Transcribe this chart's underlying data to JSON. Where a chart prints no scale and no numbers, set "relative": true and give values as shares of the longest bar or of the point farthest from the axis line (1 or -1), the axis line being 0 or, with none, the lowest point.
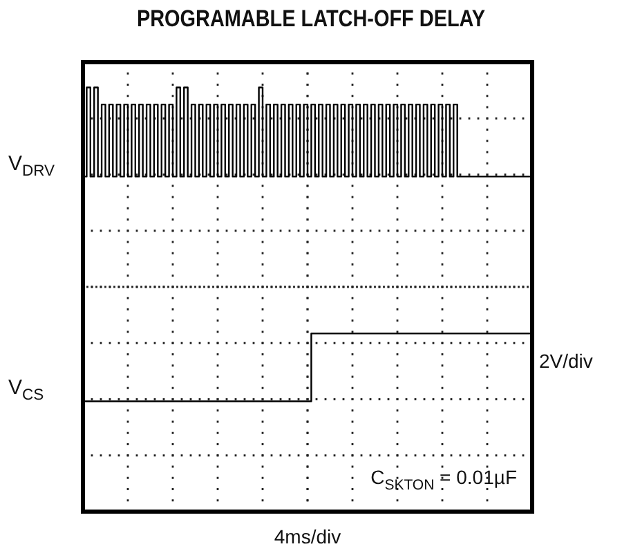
{
  "chart_data": {
    "type": "step",
    "title": "PROGRAMABLE LATCH-OFF DELAY",
    "xlabel": "4ms/div",
    "y2label": "2V/div",
    "relative": true,
    "grid": true,
    "legend": "left",
    "marker": "none",
    "line_style": "solid",
    "annotations": [
      "C$_{SKTON}$ = 0.01µF"
    ],
    "categories": [
      null,
      null,
      null,
      null,
      null,
      null,
      null,
      null,
      null,
      null,
      null,
      null,
      null,
      null,
      null,
      null,
      null,
      null,
      null,
      null,
      null,
      null,
      null,
      null,
      null,
      null,
      null,
      null,
      null,
      null,
      null,
      null,
      null,
      null,
      null,
      null,
      null,
      null,
      null,
      null,
      null,
      null,
      null,
      null,
      null,
      null,
      null,
      null,
      null,
      null,
      null,
      null,
      null,
      null,
      null,
      null,
      null,
      null,
      null,
      null,
      null,
      null,
      null,
      null,
      null,
      null,
      null,
      null,
      null,
      null,
      null,
      null,
      null,
      null,
      null,
      null,
      null,
      null,
      null,
      null,
      null,
      null,
      null,
      null,
      null,
      null,
      null,
      null,
      null,
      null,
      null,
      null,
      null,
      null,
      null,
      null,
      null,
      null,
      null,
      null,
      null,
      null,
      null,
      null,
      null,
      null,
      null,
      null,
      null,
      null,
      null,
      null,
      null,
      null,
      null,
      null,
      null,
      null,
      null,
      null,
      null
    ],
    "series": [
      {
        "name": "V$_{DRV}$",
        "color": "#000000",
        "values": [
          0.79,
          1.0,
          0.79,
          1.0,
          0.79,
          0.96,
          0.79,
          0.96,
          0.79,
          0.96,
          0.79,
          0.96,
          0.79,
          0.96,
          0.79,
          0.96,
          0.79,
          0.96,
          0.79,
          0.96,
          0.79,
          0.96,
          0.79,
          0.96,
          0.79,
          1.0,
          0.79,
          1.0,
          0.79,
          0.96,
          0.79,
          0.96,
          0.79,
          0.96,
          0.79,
          0.96,
          0.79,
          0.96,
          0.79,
          0.96,
          0.79,
          0.96,
          0.79,
          0.96,
          0.79,
          0.96,
          0.79,
          1.0,
          0.79,
          0.96,
          0.79,
          0.96,
          0.79,
          0.96,
          0.79,
          0.96,
          0.79,
          0.96,
          0.79,
          0.96,
          0.79,
          0.96,
          0.79,
          0.96,
          0.79,
          0.96,
          0.79,
          0.96,
          0.79,
          0.96,
          0.79,
          0.96,
          0.79,
          0.96,
          0.79,
          0.96,
          0.79,
          0.96,
          0.79,
          0.96,
          0.79,
          0.96,
          0.79,
          0.96,
          0.79,
          0.96,
          0.79,
          0.96,
          0.79,
          0.96,
          0.79,
          0.96,
          0.79,
          0.96,
          0.79,
          0.96,
          0.79,
          0.96,
          0.79,
          0.96,
          0.79,
          0.79,
          0.79,
          0.79,
          0.79,
          0.79,
          0.79,
          0.79,
          0.79,
          0.79,
          0.79,
          0.79,
          0.79,
          0.79,
          0.79,
          0.79,
          0.79,
          0.79,
          0.79,
          0.79,
          0.79
        ]
      },
      {
        "name": "V$_{CS}$",
        "color": "#000000",
        "values": [
          0.26,
          0.26,
          0.26,
          0.26,
          0.26,
          0.26,
          0.26,
          0.26,
          0.26,
          0.26,
          0.26,
          0.26,
          0.26,
          0.26,
          0.26,
          0.26,
          0.26,
          0.26,
          0.26,
          0.26,
          0.26,
          0.26,
          0.26,
          0.26,
          0.26,
          0.26,
          0.26,
          0.26,
          0.26,
          0.26,
          0.26,
          0.26,
          0.26,
          0.26,
          0.26,
          0.26,
          0.26,
          0.26,
          0.26,
          0.26,
          0.26,
          0.26,
          0.26,
          0.26,
          0.26,
          0.26,
          0.26,
          0.26,
          0.26,
          0.26,
          0.26,
          0.26,
          0.26,
          0.26,
          0.26,
          0.26,
          0.26,
          0.26,
          0.26,
          0.26,
          0.26,
          0.42,
          0.42,
          0.42,
          0.42,
          0.42,
          0.42,
          0.42,
          0.42,
          0.42,
          0.42,
          0.42,
          0.42,
          0.42,
          0.42,
          0.42,
          0.42,
          0.42,
          0.42,
          0.42,
          0.42,
          0.42,
          0.42,
          0.42,
          0.42,
          0.42,
          0.42,
          0.42,
          0.42,
          0.42,
          0.42,
          0.42,
          0.42,
          0.42,
          0.42,
          0.42,
          0.42,
          0.42,
          0.42,
          0.42,
          0.42,
          0.42,
          0.42,
          0.42,
          0.42,
          0.42,
          0.42,
          0.42,
          0.42,
          0.42,
          0.42,
          0.42,
          0.42,
          0.42,
          0.42,
          0.42,
          0.42,
          0.42,
          0.42,
          0.42,
          0.42
        ]
      }
    ]
  }
}
